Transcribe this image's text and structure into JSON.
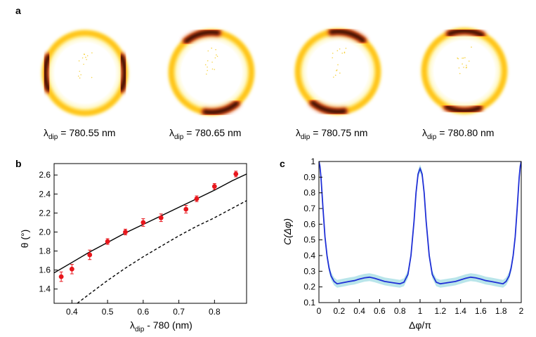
{
  "panel_labels": {
    "a": "a",
    "b": "b",
    "c": "c"
  },
  "ring_captions": [
    {
      "lambda": "λ",
      "sub": "dip",
      "rest": " = 780.55 nm"
    },
    {
      "lambda": "λ",
      "sub": "dip",
      "rest": " = 780.65 nm"
    },
    {
      "lambda": "λ",
      "sub": "dip",
      "rest": " = 780.75 nm"
    },
    {
      "lambda": "λ",
      "sub": "dip",
      "rest": " = 780.80 nm"
    }
  ],
  "rings": [
    {
      "dark_lobe_angles_deg": [
        0,
        180
      ]
    },
    {
      "dark_lobe_angles_deg": [
        75,
        255
      ]
    },
    {
      "dark_lobe_angles_deg": [
        105,
        285
      ]
    },
    {
      "dark_lobe_angles_deg": [
        92,
        272
      ]
    }
  ],
  "chart_data": [
    {
      "panel": "b",
      "type": "scatter",
      "title": "",
      "xlabel": {
        "main": "λ",
        "sub": "dip",
        "rest": " - 780 (nm)"
      },
      "ylabel": "θ (°)",
      "xlim": [
        0.35,
        0.89
      ],
      "ylim": [
        1.25,
        2.72
      ],
      "xticks": [
        0.4,
        0.5,
        0.6,
        0.7,
        0.8
      ],
      "xtick_labels": [
        "0.4",
        "0.5",
        "0.6",
        "0.7",
        "0.8"
      ],
      "yticks": [
        1.4,
        1.6,
        1.8,
        2.0,
        2.2,
        2.4,
        2.6
      ],
      "ytick_labels": [
        "1.4",
        "1.6",
        "1.8",
        "2.0",
        "2.2",
        "2.4",
        "2.6"
      ],
      "series": [
        {
          "name": "measured",
          "kind": "points",
          "color": "#e8161c",
          "x": [
            0.37,
            0.4,
            0.45,
            0.5,
            0.55,
            0.6,
            0.65,
            0.72,
            0.75,
            0.8,
            0.86
          ],
          "y": [
            1.53,
            1.61,
            1.76,
            1.9,
            2.0,
            2.1,
            2.15,
            2.24,
            2.35,
            2.48,
            2.61
          ],
          "err": [
            0.05,
            0.05,
            0.05,
            0.03,
            0.03,
            0.04,
            0.04,
            0.04,
            0.03,
            0.03,
            0.03
          ]
        },
        {
          "name": "theory-solid",
          "kind": "line",
          "style": "solid",
          "color": "#000000",
          "x": [
            0.35,
            0.4,
            0.45,
            0.5,
            0.55,
            0.6,
            0.65,
            0.7,
            0.75,
            0.8,
            0.85,
            0.89
          ],
          "y": [
            1.57,
            1.68,
            1.79,
            1.89,
            1.99,
            2.08,
            2.17,
            2.26,
            2.35,
            2.44,
            2.54,
            2.61
          ]
        },
        {
          "name": "theory-dashed",
          "kind": "line",
          "style": "dashed",
          "color": "#000000",
          "x": [
            0.415,
            0.45,
            0.5,
            0.55,
            0.6,
            0.65,
            0.7,
            0.75,
            0.8,
            0.85,
            0.89
          ],
          "y": [
            1.25,
            1.35,
            1.49,
            1.62,
            1.74,
            1.85,
            1.96,
            2.06,
            2.15,
            2.25,
            2.33
          ]
        }
      ]
    },
    {
      "panel": "c",
      "type": "line",
      "title": "",
      "xlabel": "Δφ/π",
      "ylabel": "C(Δφ)",
      "xlim": [
        0,
        2
      ],
      "ylim": [
        0.1,
        1.0
      ],
      "xticks": [
        0,
        0.2,
        0.4,
        0.6,
        0.8,
        1,
        1.2,
        1.4,
        1.6,
        1.8,
        2
      ],
      "xtick_labels": [
        "0",
        "0.2",
        "0.4",
        "0.6",
        "0.8",
        "1",
        "1.2",
        "1.4",
        "1.6",
        "1.8",
        "2"
      ],
      "yticks": [
        0.1,
        0.2,
        0.3,
        0.4,
        0.5,
        0.6,
        0.7,
        0.8,
        0.9,
        1.0
      ],
      "ytick_labels": [
        "0.1",
        "0.2",
        "0.3",
        "0.4",
        "0.5",
        "0.6",
        "0.7",
        "0.8",
        "0.9",
        "1"
      ],
      "series": [
        {
          "name": "correlation",
          "color": "#1f2fd6",
          "band_color": "#7fd0d8",
          "x": [
            0,
            0.01,
            0.02,
            0.04,
            0.06,
            0.08,
            0.1,
            0.12,
            0.15,
            0.18,
            0.22,
            0.26,
            0.3,
            0.35,
            0.4,
            0.45,
            0.5,
            0.55,
            0.6,
            0.65,
            0.7,
            0.75,
            0.8,
            0.84,
            0.88,
            0.91,
            0.94,
            0.96,
            0.98,
            1.0,
            1.02,
            1.04,
            1.06,
            1.09,
            1.12,
            1.16,
            1.2,
            1.25,
            1.3,
            1.35,
            1.4,
            1.45,
            1.5,
            1.55,
            1.6,
            1.65,
            1.7,
            1.74,
            1.78,
            1.82,
            1.85,
            1.88,
            1.9,
            1.92,
            1.94,
            1.96,
            1.98,
            1.99,
            2.0
          ],
          "y": [
            1.0,
            0.97,
            0.9,
            0.7,
            0.52,
            0.4,
            0.32,
            0.27,
            0.235,
            0.22,
            0.225,
            0.23,
            0.235,
            0.24,
            0.25,
            0.258,
            0.262,
            0.255,
            0.245,
            0.235,
            0.23,
            0.225,
            0.22,
            0.23,
            0.28,
            0.4,
            0.62,
            0.8,
            0.92,
            0.955,
            0.92,
            0.8,
            0.62,
            0.4,
            0.28,
            0.23,
            0.22,
            0.225,
            0.23,
            0.235,
            0.245,
            0.255,
            0.262,
            0.258,
            0.25,
            0.24,
            0.235,
            0.23,
            0.225,
            0.22,
            0.235,
            0.27,
            0.32,
            0.4,
            0.52,
            0.7,
            0.9,
            0.97,
            1.0
          ],
          "band_halfwidth": 0.025
        }
      ]
    }
  ]
}
